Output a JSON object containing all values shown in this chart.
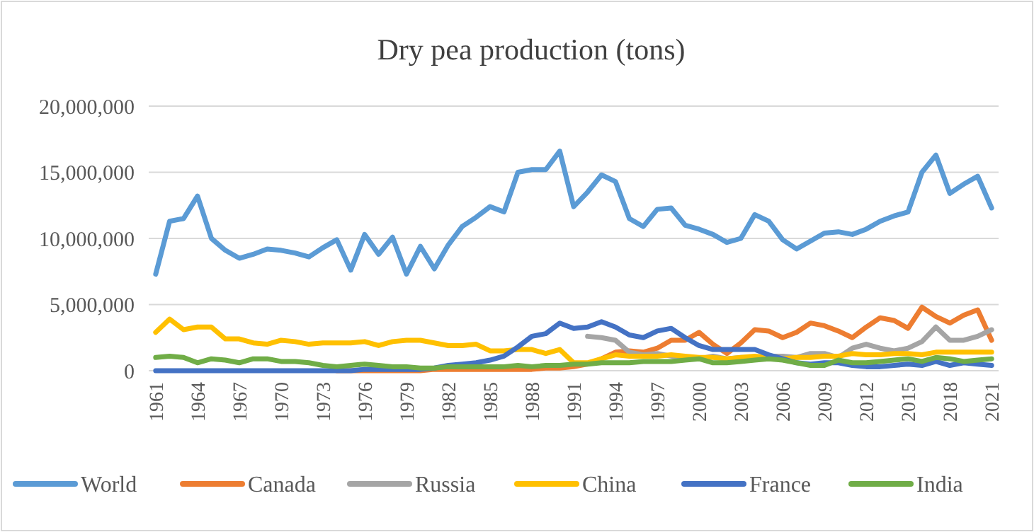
{
  "chart_data": {
    "type": "line",
    "title": "Dry pea production (tons)",
    "x": [
      1961,
      1962,
      1963,
      1964,
      1965,
      1966,
      1967,
      1968,
      1969,
      1970,
      1971,
      1972,
      1973,
      1974,
      1975,
      1976,
      1977,
      1978,
      1979,
      1980,
      1981,
      1982,
      1983,
      1984,
      1985,
      1986,
      1987,
      1988,
      1989,
      1990,
      1991,
      1992,
      1993,
      1994,
      1995,
      1996,
      1997,
      1998,
      1999,
      2000,
      2001,
      2002,
      2003,
      2004,
      2005,
      2006,
      2007,
      2008,
      2009,
      2010,
      2011,
      2012,
      2013,
      2014,
      2015,
      2016,
      2017,
      2018,
      2019,
      2020,
      2021
    ],
    "xlim": [
      1960.5,
      2021.5
    ],
    "xticks": [
      1961,
      1964,
      1967,
      1970,
      1973,
      1976,
      1979,
      1982,
      1985,
      1988,
      1991,
      1994,
      1997,
      2000,
      2003,
      2006,
      2009,
      2012,
      2015,
      2018,
      2021
    ],
    "ylim": [
      0,
      20000000
    ],
    "yticks": [
      {
        "value": 0,
        "label": "0"
      },
      {
        "value": 5000000,
        "label": "5,000,000"
      },
      {
        "value": 10000000,
        "label": "10,000,000"
      },
      {
        "value": 15000000,
        "label": "15,000,000"
      },
      {
        "value": 20000000,
        "label": "20,000,000"
      }
    ],
    "grid": "y",
    "legend": "bottom",
    "marker": "none",
    "line_style": "solid",
    "series": [
      {
        "name": "World",
        "color": "#5b9bd5",
        "values": [
          7300000,
          11300000,
          11500000,
          13200000,
          10000000,
          9100000,
          8500000,
          8800000,
          9200000,
          9100000,
          8900000,
          8600000,
          9300000,
          9900000,
          7600000,
          10300000,
          8800000,
          10100000,
          7300000,
          9400000,
          7700000,
          9500000,
          10900000,
          11600000,
          12400000,
          12000000,
          15000000,
          15200000,
          15200000,
          16600000,
          12400000,
          13500000,
          14800000,
          14300000,
          11500000,
          10900000,
          12200000,
          12300000,
          11000000,
          10700000,
          10300000,
          9700000,
          10000000,
          11800000,
          11300000,
          9900000,
          9200000,
          9800000,
          10400000,
          10500000,
          10300000,
          10700000,
          11300000,
          11700000,
          12000000,
          15000000,
          16300000,
          13400000,
          14100000,
          14700000,
          12300000
        ]
      },
      {
        "name": "Canada",
        "color": "#ed7d31",
        "values": [
          null,
          null,
          null,
          null,
          null,
          null,
          null,
          null,
          null,
          null,
          null,
          null,
          null,
          0,
          0,
          0,
          0,
          0,
          0,
          0,
          100000,
          100000,
          100000,
          100000,
          100000,
          100000,
          100000,
          100000,
          200000,
          200000,
          300000,
          500000,
          900000,
          1400000,
          1500000,
          1400000,
          1700000,
          2300000,
          2300000,
          2900000,
          2000000,
          1300000,
          2100000,
          3100000,
          3000000,
          2500000,
          2900000,
          3600000,
          3400000,
          3000000,
          2500000,
          3300000,
          4000000,
          3800000,
          3200000,
          4800000,
          4100000,
          3600000,
          4200000,
          4600000,
          2300000
        ]
      },
      {
        "name": "Russia",
        "color": "#a5a5a5",
        "values": [
          null,
          null,
          null,
          null,
          null,
          null,
          null,
          null,
          null,
          null,
          null,
          null,
          null,
          null,
          null,
          null,
          null,
          null,
          null,
          null,
          null,
          null,
          null,
          null,
          null,
          null,
          null,
          null,
          null,
          null,
          null,
          2600000,
          2500000,
          2300000,
          1400000,
          1200000,
          1300000,
          1100000,
          900000,
          900000,
          1100000,
          900000,
          1000000,
          1000000,
          1100000,
          1100000,
          1000000,
          1300000,
          1300000,
          1000000,
          1700000,
          2000000,
          1700000,
          1500000,
          1700000,
          2200000,
          3300000,
          2300000,
          2300000,
          2600000,
          3100000
        ]
      },
      {
        "name": "China",
        "color": "#ffc000",
        "values": [
          2900000,
          3900000,
          3100000,
          3300000,
          3300000,
          2400000,
          2400000,
          2100000,
          2000000,
          2300000,
          2200000,
          2000000,
          2100000,
          2100000,
          2100000,
          2200000,
          1900000,
          2200000,
          2300000,
          2300000,
          2100000,
          1900000,
          1900000,
          2000000,
          1500000,
          1500000,
          1600000,
          1600000,
          1300000,
          1600000,
          600000,
          600000,
          900000,
          1200000,
          1100000,
          1100000,
          1100000,
          1200000,
          1100000,
          1000000,
          1000000,
          900000,
          1000000,
          1100000,
          1000000,
          900000,
          1000000,
          1000000,
          1100000,
          1100000,
          1300000,
          1200000,
          1200000,
          1300000,
          1300000,
          1200000,
          1400000,
          1400000,
          1400000,
          1400000,
          1400000
        ]
      },
      {
        "name": "France",
        "color": "#4472c4",
        "values": [
          0,
          0,
          0,
          0,
          0,
          0,
          0,
          0,
          0,
          0,
          0,
          0,
          0,
          0,
          0,
          100000,
          100000,
          100000,
          100000,
          100000,
          200000,
          400000,
          500000,
          600000,
          800000,
          1100000,
          1800000,
          2600000,
          2800000,
          3600000,
          3200000,
          3300000,
          3700000,
          3300000,
          2700000,
          2500000,
          3000000,
          3200000,
          2500000,
          1900000,
          1600000,
          1600000,
          1600000,
          1600000,
          1200000,
          900000,
          600000,
          500000,
          600000,
          600000,
          400000,
          300000,
          300000,
          400000,
          500000,
          400000,
          700000,
          400000,
          600000,
          500000,
          400000
        ]
      },
      {
        "name": "India",
        "color": "#70ad47",
        "values": [
          1000000,
          1100000,
          1000000,
          600000,
          900000,
          800000,
          600000,
          900000,
          900000,
          700000,
          700000,
          600000,
          400000,
          300000,
          400000,
          500000,
          400000,
          300000,
          300000,
          200000,
          200000,
          300000,
          300000,
          300000,
          300000,
          300000,
          400000,
          300000,
          400000,
          400000,
          500000,
          500000,
          600000,
          600000,
          600000,
          700000,
          700000,
          700000,
          800000,
          900000,
          600000,
          600000,
          700000,
          800000,
          900000,
          800000,
          600000,
          400000,
          400000,
          800000,
          600000,
          600000,
          700000,
          800000,
          900000,
          700000,
          1000000,
          900000,
          700000,
          800000,
          900000
        ]
      }
    ]
  }
}
